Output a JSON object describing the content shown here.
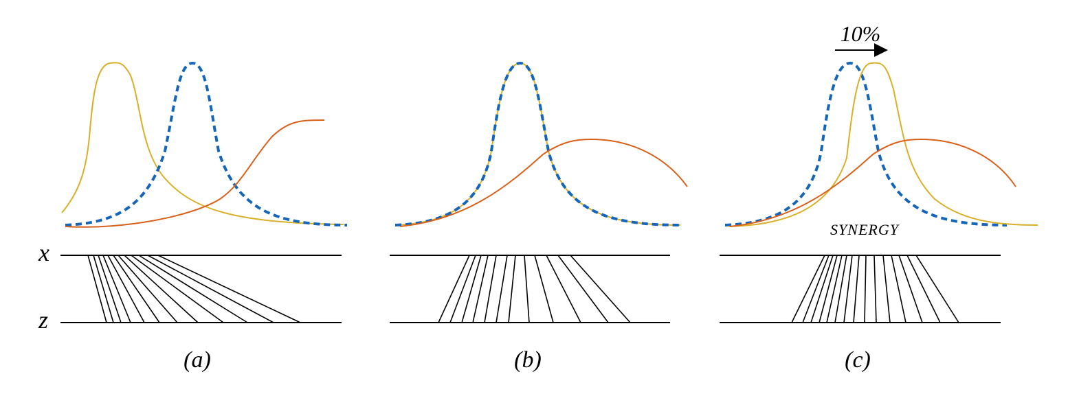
{
  "axes": {
    "x": "x",
    "z": "z"
  },
  "panels": [
    {
      "label": "(a)"
    },
    {
      "label": "(b)"
    },
    {
      "label": "(c)",
      "annotation": "10%",
      "caption": "SYNERGY"
    }
  ]
}
